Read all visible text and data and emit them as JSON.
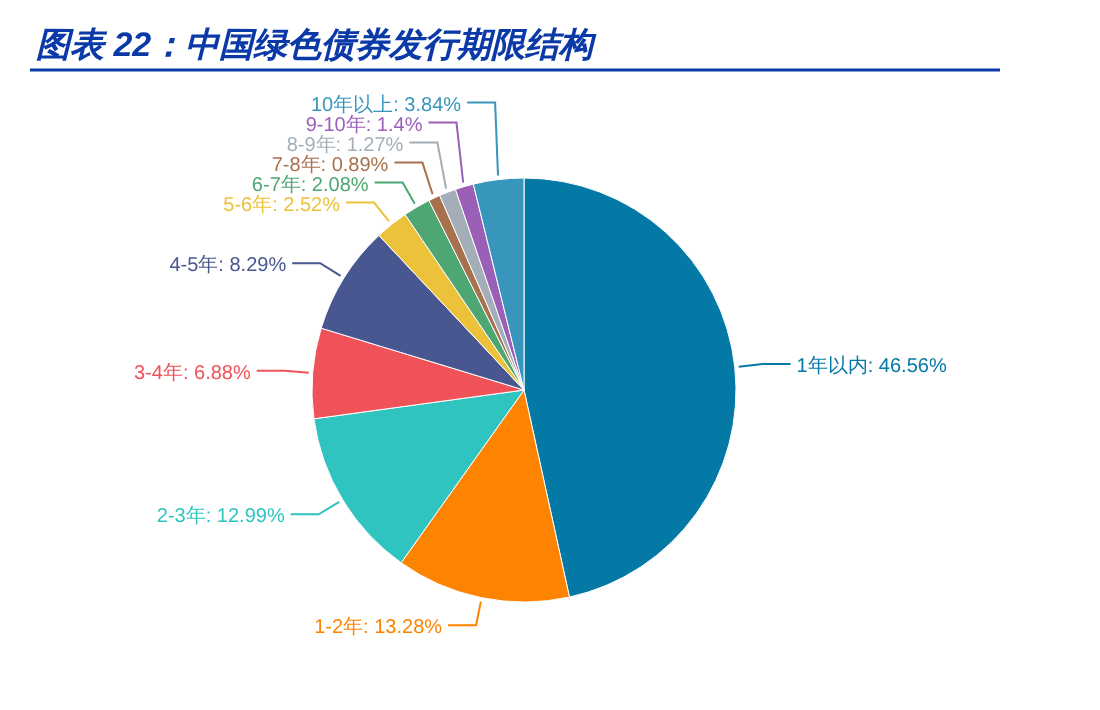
{
  "chart_data": {
    "type": "pie",
    "title": "图表 22：中国绿色债券发行期限结构",
    "categories": [
      "1年以内",
      "1-2年",
      "2-3年",
      "3-4年",
      "4-5年",
      "5-6年",
      "6-7年",
      "7-8年",
      "8-9年",
      "9-10年",
      "10年以上"
    ],
    "values": [
      46.56,
      13.28,
      12.99,
      6.88,
      8.29,
      2.52,
      2.08,
      0.89,
      1.27,
      1.4,
      3.84
    ],
    "value_labels": [
      "46.56%",
      "13.28%",
      "12.99%",
      "6.88%",
      "8.29%",
      "2.52%",
      "2.08%",
      "0.89%",
      "1.27%",
      "1.4%",
      "3.84%"
    ],
    "colors": [
      "#0579a6",
      "#fd8300",
      "#2fc4c0",
      "#f0525a",
      "#485790",
      "#ecc23a",
      "#4ea672",
      "#a8714e",
      "#a3aeb8",
      "#9a60b8",
      "#3896bd"
    ]
  }
}
